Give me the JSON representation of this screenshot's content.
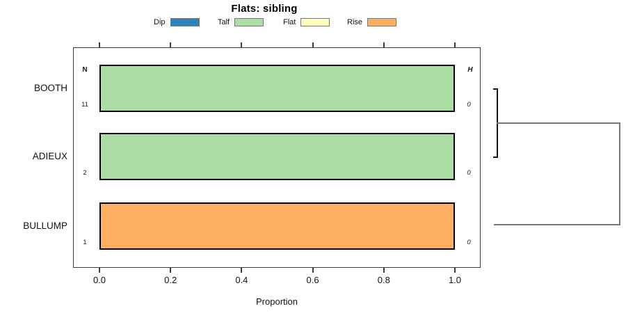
{
  "title": "Flats: sibling",
  "legend": {
    "items": [
      {
        "label": "Dip",
        "color": "#2B83BA"
      },
      {
        "label": "Talf",
        "color": "#ABDDA4"
      },
      {
        "label": "Flat",
        "color": "#FFFFBF"
      },
      {
        "label": "Rise",
        "color": "#FDAE61"
      }
    ]
  },
  "axes": {
    "xlabel": "Proportion",
    "x_ticks": [
      "0.0",
      "0.2",
      "0.4",
      "0.6",
      "0.8",
      "1.0"
    ]
  },
  "annotations": {
    "n_header": "N",
    "h_header": "H"
  },
  "chart_data": {
    "type": "bar",
    "orientation": "horizontal",
    "stacked": true,
    "title": "Flats: sibling",
    "xlabel": "Proportion",
    "xlim": [
      0,
      1
    ],
    "x_tick_values": [
      0.0,
      0.2,
      0.4,
      0.6,
      0.8,
      1.0
    ],
    "grid": false,
    "legend_position": "top",
    "categories": [
      "BOOTH",
      "ADIEUX",
      "BULLUMP"
    ],
    "series": [
      {
        "name": "Dip",
        "color": "#2B83BA",
        "values": [
          0,
          0,
          0
        ]
      },
      {
        "name": "Talf",
        "color": "#ABDDA4",
        "values": [
          1,
          1,
          0
        ]
      },
      {
        "name": "Flat",
        "color": "#FFFFBF",
        "values": [
          0,
          0,
          0
        ]
      },
      {
        "name": "Rise",
        "color": "#FDAE61",
        "values": [
          0,
          0,
          1
        ]
      }
    ],
    "n_values": [
      "11",
      "2",
      "1"
    ],
    "h_values": [
      "0",
      "0",
      "0"
    ],
    "dendrogram": {
      "side": "right",
      "merges": [
        {
          "members": [
            "BOOTH",
            "ADIEUX"
          ],
          "height": "low"
        },
        {
          "members": [
            "BOOTH+ADIEUX",
            "BULLUMP"
          ],
          "height": "high"
        }
      ]
    }
  }
}
